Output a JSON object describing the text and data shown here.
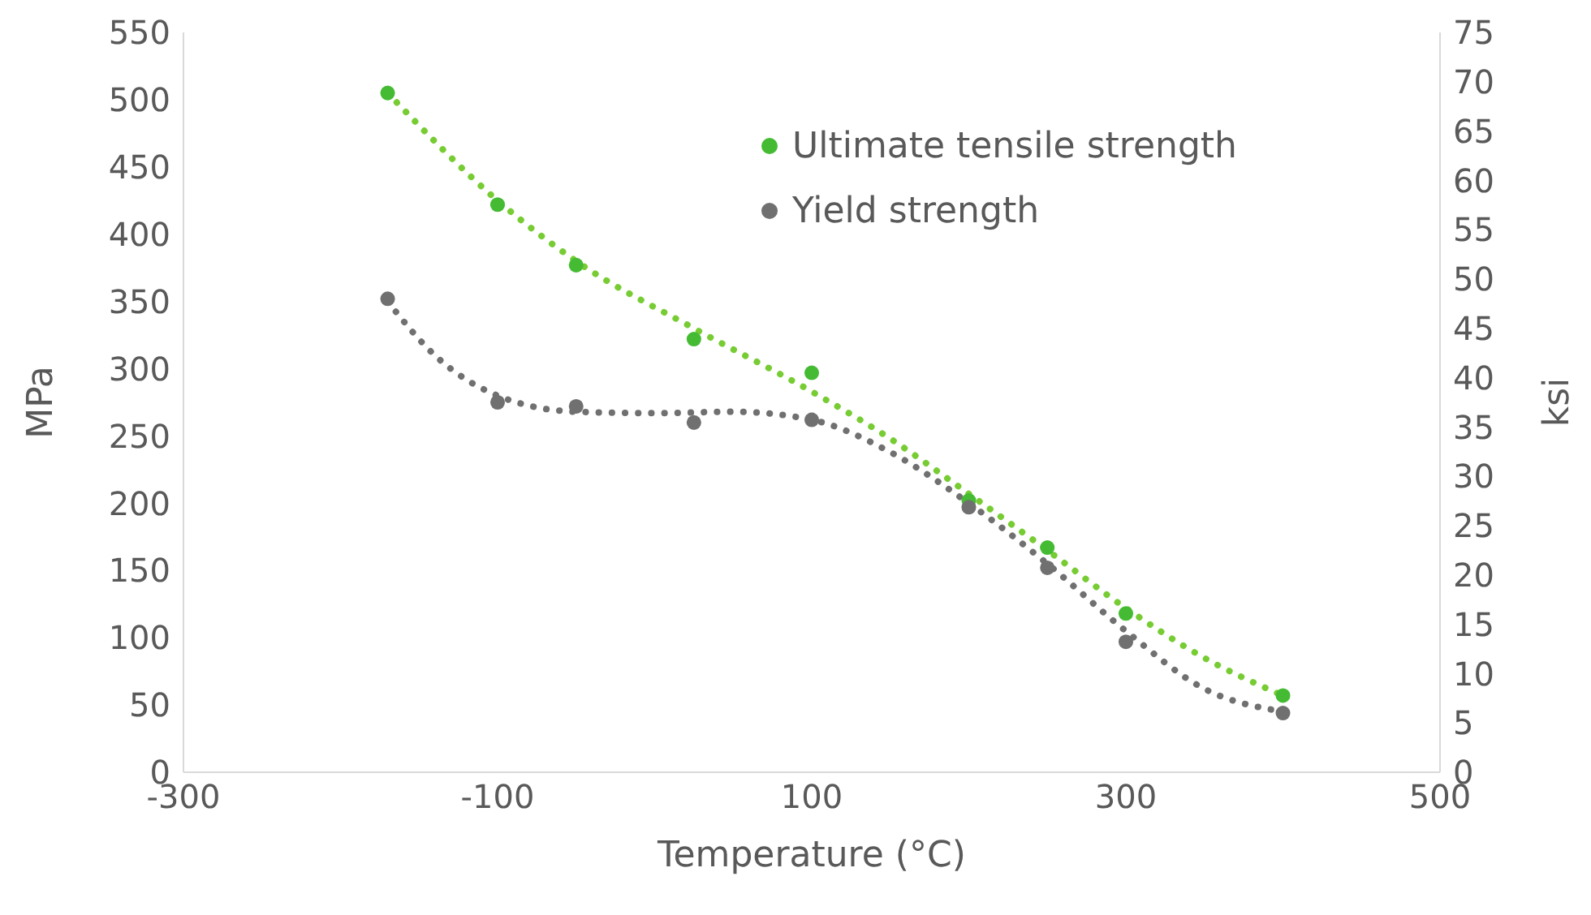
{
  "chart_data": {
    "type": "scatter",
    "xlabel": "Temperature (°C)",
    "ylabel": "MPa",
    "y2label": "ksi",
    "xlim": [
      -300,
      500
    ],
    "xticks": [
      -300,
      -100,
      100,
      300,
      500
    ],
    "ylim": [
      0,
      550
    ],
    "yticks": [
      0,
      50,
      100,
      150,
      200,
      250,
      300,
      350,
      400,
      450,
      500,
      550
    ],
    "y2lim": [
      0,
      75
    ],
    "y2ticks": [
      0,
      5,
      10,
      15,
      20,
      25,
      30,
      35,
      40,
      45,
      50,
      55,
      60,
      65,
      70,
      75
    ],
    "grid": false,
    "legend": "top right",
    "series": [
      {
        "name": "Ultimate tensile strength",
        "marker": "circle",
        "color": "#44bb33",
        "x": [
          -170,
          -100,
          -50,
          25,
          100,
          200,
          250,
          300,
          400
        ],
        "values": [
          505,
          422,
          377,
          322,
          297,
          202,
          167,
          118,
          57
        ]
      },
      {
        "name": "Yield strength",
        "marker": "circle",
        "color": "#707070",
        "x": [
          -170,
          -100,
          -50,
          25,
          100,
          200,
          250,
          300,
          400
        ],
        "values": [
          352,
          275,
          272,
          260,
          262,
          197,
          152,
          97,
          44
        ]
      },
      {
        "type": "line",
        "marker": "none",
        "line_style": "dotted",
        "color": "#77cc33",
        "x": [
          -170,
          -100,
          -50,
          25,
          100,
          150,
          200,
          250,
          300,
          350,
          400
        ],
        "values": [
          505,
          425,
          380,
          330,
          283,
          248,
          207,
          165,
          122,
          85,
          57
        ]
      },
      {
        "type": "line",
        "marker": "none",
        "line_style": "dotted",
        "color": "#707070",
        "x": [
          -170,
          -140,
          -100,
          -50,
          0,
          50,
          100,
          150,
          200,
          250,
          300,
          350,
          400
        ],
        "values": [
          350,
          310,
          280,
          268,
          267,
          268,
          262,
          238,
          200,
          155,
          105,
          62,
          45
        ]
      }
    ]
  }
}
